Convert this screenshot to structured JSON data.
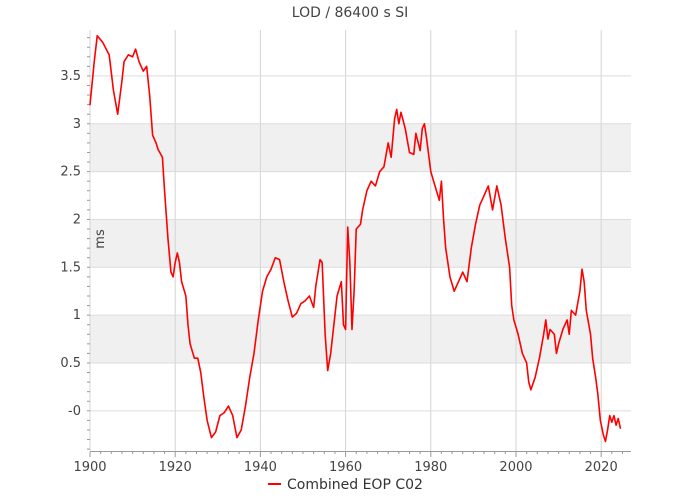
{
  "chart_data": {
    "type": "line",
    "title": "LOD / 86400 s SI",
    "xlabel": "",
    "ylabel": "ms",
    "xlim": [
      1900,
      2027
    ],
    "ylim": [
      -0.42,
      3.98
    ],
    "x_ticks": [
      1900,
      1920,
      1940,
      1960,
      1980,
      2000,
      2020
    ],
    "y_ticks": [
      0,
      0.5,
      1,
      1.5,
      2,
      2.5,
      3,
      3.5
    ],
    "y_tick_labels": [
      "-0",
      "0.5",
      "1",
      "1.5",
      "2",
      "2.5",
      "3",
      "3.5"
    ],
    "grid": true,
    "banded_background": true,
    "legend_position": "bottom-center",
    "line_color": "#ff0000",
    "series": [
      {
        "name": "Combined EOP C02",
        "points": [
          [
            1900,
            3.2
          ],
          [
            1901,
            3.65
          ],
          [
            1901.7,
            3.92
          ],
          [
            1903,
            3.85
          ],
          [
            1904.5,
            3.72
          ],
          [
            1905.5,
            3.35
          ],
          [
            1906.5,
            3.1
          ],
          [
            1907.5,
            3.45
          ],
          [
            1908,
            3.65
          ],
          [
            1909,
            3.72
          ],
          [
            1910,
            3.7
          ],
          [
            1910.7,
            3.78
          ],
          [
            1911.5,
            3.65
          ],
          [
            1912.5,
            3.55
          ],
          [
            1913.3,
            3.6
          ],
          [
            1914,
            3.3
          ],
          [
            1914.7,
            2.88
          ],
          [
            1915.5,
            2.8
          ],
          [
            1916,
            2.73
          ],
          [
            1917,
            2.65
          ],
          [
            1917.5,
            2.3
          ],
          [
            1918.3,
            1.8
          ],
          [
            1919,
            1.45
          ],
          [
            1919.5,
            1.4
          ],
          [
            1920,
            1.55
          ],
          [
            1920.5,
            1.65
          ],
          [
            1921,
            1.55
          ],
          [
            1921.5,
            1.35
          ],
          [
            1922.5,
            1.2
          ],
          [
            1923,
            0.9
          ],
          [
            1923.5,
            0.7
          ],
          [
            1924.5,
            0.55
          ],
          [
            1925.3,
            0.55
          ],
          [
            1926,
            0.4
          ],
          [
            1926.7,
            0.15
          ],
          [
            1927.5,
            -0.1
          ],
          [
            1928.5,
            -0.28
          ],
          [
            1929.5,
            -0.22
          ],
          [
            1930.5,
            -0.05
          ],
          [
            1931.5,
            -0.02
          ],
          [
            1932.5,
            0.05
          ],
          [
            1933.5,
            -0.05
          ],
          [
            1934.5,
            -0.28
          ],
          [
            1935.5,
            -0.2
          ],
          [
            1936.5,
            0.05
          ],
          [
            1937.5,
            0.35
          ],
          [
            1938.5,
            0.6
          ],
          [
            1939.5,
            0.95
          ],
          [
            1940.5,
            1.25
          ],
          [
            1941.5,
            1.4
          ],
          [
            1942.5,
            1.48
          ],
          [
            1943.5,
            1.6
          ],
          [
            1944.5,
            1.58
          ],
          [
            1945.5,
            1.35
          ],
          [
            1946.5,
            1.15
          ],
          [
            1947.5,
            0.98
          ],
          [
            1948.5,
            1.02
          ],
          [
            1949.5,
            1.12
          ],
          [
            1950.5,
            1.15
          ],
          [
            1951.5,
            1.2
          ],
          [
            1952.5,
            1.08
          ],
          [
            1953,
            1.3
          ],
          [
            1954,
            1.58
          ],
          [
            1954.5,
            1.55
          ],
          [
            1955.2,
            0.8
          ],
          [
            1955.8,
            0.42
          ],
          [
            1956.5,
            0.6
          ],
          [
            1957.5,
            1.0
          ],
          [
            1958,
            1.2
          ],
          [
            1959,
            1.35
          ],
          [
            1959.5,
            0.9
          ],
          [
            1960,
            0.85
          ],
          [
            1960.5,
            1.92
          ],
          [
            1961,
            1.55
          ],
          [
            1961.5,
            0.85
          ],
          [
            1962,
            1.25
          ],
          [
            1962.5,
            1.9
          ],
          [
            1963.5,
            1.95
          ],
          [
            1964,
            2.1
          ],
          [
            1965,
            2.3
          ],
          [
            1966,
            2.4
          ],
          [
            1967,
            2.35
          ],
          [
            1968,
            2.5
          ],
          [
            1969,
            2.55
          ],
          [
            1970,
            2.8
          ],
          [
            1970.7,
            2.65
          ],
          [
            1971.5,
            3.05
          ],
          [
            1972,
            3.15
          ],
          [
            1972.5,
            3.0
          ],
          [
            1973,
            3.12
          ],
          [
            1974,
            2.95
          ],
          [
            1975,
            2.7
          ],
          [
            1976,
            2.68
          ],
          [
            1976.5,
            2.9
          ],
          [
            1977.5,
            2.72
          ],
          [
            1978,
            2.95
          ],
          [
            1978.5,
            3.0
          ],
          [
            1979,
            2.85
          ],
          [
            1980,
            2.5
          ],
          [
            1981,
            2.35
          ],
          [
            1982,
            2.2
          ],
          [
            1982.5,
            2.4
          ],
          [
            1983,
            2.0
          ],
          [
            1983.5,
            1.7
          ],
          [
            1984.5,
            1.4
          ],
          [
            1985.5,
            1.25
          ],
          [
            1986.5,
            1.35
          ],
          [
            1987.5,
            1.45
          ],
          [
            1988.5,
            1.35
          ],
          [
            1989.5,
            1.7
          ],
          [
            1990.5,
            1.95
          ],
          [
            1991.5,
            2.15
          ],
          [
            1992.5,
            2.25
          ],
          [
            1993.5,
            2.35
          ],
          [
            1994.5,
            2.1
          ],
          [
            1995.5,
            2.35
          ],
          [
            1996.5,
            2.15
          ],
          [
            1997.5,
            1.8
          ],
          [
            1998.5,
            1.5
          ],
          [
            1999,
            1.1
          ],
          [
            1999.5,
            0.95
          ],
          [
            2000.5,
            0.8
          ],
          [
            2001.5,
            0.6
          ],
          [
            2002.5,
            0.5
          ],
          [
            2003,
            0.3
          ],
          [
            2003.5,
            0.22
          ],
          [
            2004.5,
            0.35
          ],
          [
            2005.5,
            0.55
          ],
          [
            2006.5,
            0.8
          ],
          [
            2007,
            0.95
          ],
          [
            2007.5,
            0.75
          ],
          [
            2008,
            0.85
          ],
          [
            2009,
            0.8
          ],
          [
            2009.5,
            0.6
          ],
          [
            2010,
            0.7
          ],
          [
            2011,
            0.85
          ],
          [
            2012,
            0.95
          ],
          [
            2012.5,
            0.8
          ],
          [
            2013,
            1.05
          ],
          [
            2014,
            1.0
          ],
          [
            2015,
            1.25
          ],
          [
            2015.5,
            1.48
          ],
          [
            2016,
            1.35
          ],
          [
            2016.5,
            1.05
          ],
          [
            2017.5,
            0.8
          ],
          [
            2018,
            0.55
          ],
          [
            2018.7,
            0.35
          ],
          [
            2019.2,
            0.18
          ],
          [
            2019.8,
            -0.1
          ],
          [
            2020.5,
            -0.25
          ],
          [
            2021,
            -0.32
          ],
          [
            2021.5,
            -0.2
          ],
          [
            2022,
            -0.05
          ],
          [
            2022.5,
            -0.12
          ],
          [
            2023,
            -0.05
          ],
          [
            2023.5,
            -0.15
          ],
          [
            2024,
            -0.08
          ],
          [
            2024.5,
            -0.18
          ]
        ]
      }
    ]
  }
}
